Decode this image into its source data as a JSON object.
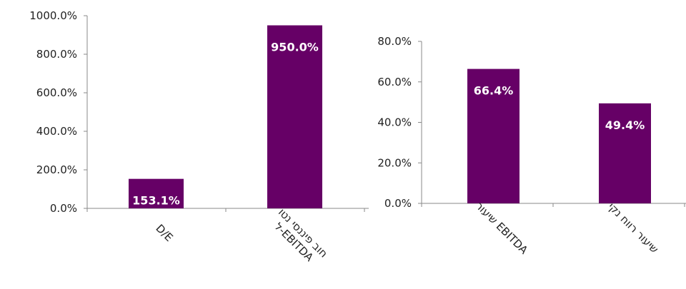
{
  "chart_data": [
    {
      "type": "bar",
      "categories": [
        "D/E",
        "חוב פיננסי נטו\nל-EBITDA"
      ],
      "values": [
        153.1,
        950.0
      ],
      "data_labels": [
        "153.1%",
        "950.0%"
      ],
      "ylim": [
        0,
        1000
      ],
      "yticks": [
        "0.0%",
        "200.0%",
        "400.0%",
        "600.0%",
        "800.0%",
        "1000.0%"
      ],
      "ytick_values": [
        0,
        200,
        400,
        600,
        800,
        1000
      ],
      "grid": false,
      "bar_color": "#660066"
    },
    {
      "type": "bar",
      "categories": [
        "שיעור EBITDA",
        "שיעור רווח נקי"
      ],
      "values": [
        66.4,
        49.4
      ],
      "data_labels": [
        "66.4%",
        "49.4%"
      ],
      "ylim": [
        0,
        80
      ],
      "yticks": [
        "0.0%",
        "20.0%",
        "40.0%",
        "60.0%",
        "80.0%"
      ],
      "ytick_values": [
        0,
        20,
        40,
        60,
        80
      ],
      "grid": false,
      "bar_color": "#660066"
    }
  ]
}
